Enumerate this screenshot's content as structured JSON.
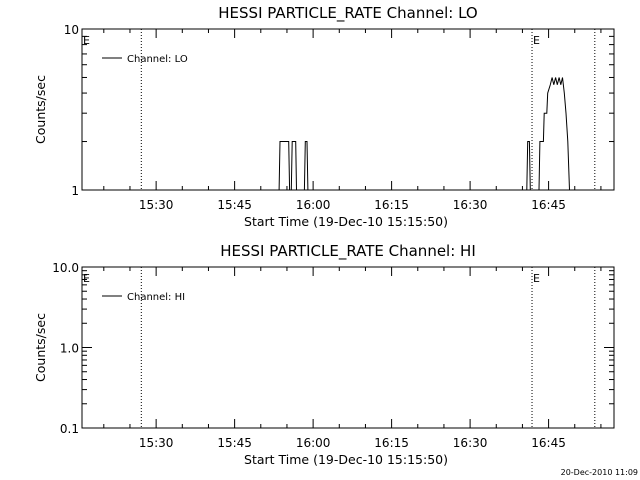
{
  "footer": {
    "timestamp": "20-Dec-2010 11:09"
  },
  "chart_data": [
    {
      "type": "line",
      "title": "HESSI PARTICLE_RATE Channel: LO",
      "xlabel": "Start Time (19-Dec-10 15:15:50)",
      "ylabel": "Counts/sec",
      "yscale": "log",
      "ylim": [
        1,
        10
      ],
      "ytick_labels": [
        "1",
        "10"
      ],
      "xlim": [
        "15:15:50",
        "16:57:30"
      ],
      "xtick_labels": [
        "15:30",
        "15:45",
        "16:00",
        "16:15",
        "16:30",
        "16:45"
      ],
      "grid": false,
      "legend_position": "top-left",
      "event_marker_label": "E",
      "event_markers": [
        {
          "time": "15:15:50",
          "style": "none",
          "label": "E"
        },
        {
          "time": "15:27:10",
          "style": "dotted",
          "label": ""
        },
        {
          "time": "16:41:50",
          "style": "dotted",
          "label": "E"
        },
        {
          "time": "16:53:50",
          "style": "dotted",
          "label": ""
        }
      ],
      "series": [
        {
          "name": "Channel: LO",
          "segments": [
            [
              [
                "15:53:30",
                1
              ],
              [
                "15:53:40",
                2
              ],
              [
                "15:55:20",
                2
              ],
              [
                "15:55:30",
                1
              ],
              [
                "15:55:50",
                1
              ],
              [
                "15:56:00",
                2
              ],
              [
                "15:56:40",
                2
              ],
              [
                "15:56:50",
                1
              ]
            ],
            [
              [
                "15:58:20",
                1
              ],
              [
                "15:58:30",
                2
              ],
              [
                "15:58:50",
                2
              ],
              [
                "15:59:00",
                1
              ]
            ],
            [
              [
                "16:40:50",
                1
              ],
              [
                "16:41:00",
                2
              ],
              [
                "16:41:20",
                2
              ],
              [
                "16:41:30",
                1
              ],
              [
                "16:43:10",
                1
              ],
              [
                "16:43:20",
                2
              ],
              [
                "16:44:00",
                2
              ],
              [
                "16:44:10",
                3
              ],
              [
                "16:44:40",
                3
              ],
              [
                "16:44:50",
                4
              ],
              [
                "16:45:20",
                4.5
              ],
              [
                "16:45:40",
                5
              ],
              [
                "16:46:00",
                4.5
              ],
              [
                "16:46:20",
                5
              ],
              [
                "16:46:40",
                4.5
              ],
              [
                "16:47:00",
                5
              ],
              [
                "16:47:20",
                4.5
              ],
              [
                "16:47:40",
                5
              ],
              [
                "16:48:00",
                4
              ],
              [
                "16:48:20",
                3
              ],
              [
                "16:48:40",
                2
              ],
              [
                "16:49:00",
                1
              ]
            ]
          ]
        }
      ]
    },
    {
      "type": "line",
      "title": "HESSI PARTICLE_RATE Channel: HI",
      "xlabel": "Start Time (19-Dec-10 15:15:50)",
      "ylabel": "Counts/sec",
      "yscale": "log",
      "ylim": [
        0.1,
        10
      ],
      "ytick_labels": [
        "0.1",
        "1.0",
        "10.0"
      ],
      "xlim": [
        "15:15:50",
        "16:57:30"
      ],
      "xtick_labels": [
        "15:30",
        "15:45",
        "16:00",
        "16:15",
        "16:30",
        "16:45"
      ],
      "grid": false,
      "legend_position": "top-left",
      "event_marker_label": "E",
      "event_markers": [
        {
          "time": "15:15:50",
          "style": "none",
          "label": "E"
        },
        {
          "time": "15:27:10",
          "style": "dotted",
          "label": ""
        },
        {
          "time": "16:41:50",
          "style": "dotted",
          "label": "E"
        },
        {
          "time": "16:53:50",
          "style": "dotted",
          "label": ""
        }
      ],
      "series": [
        {
          "name": "Channel: HI",
          "segments": []
        }
      ]
    }
  ]
}
